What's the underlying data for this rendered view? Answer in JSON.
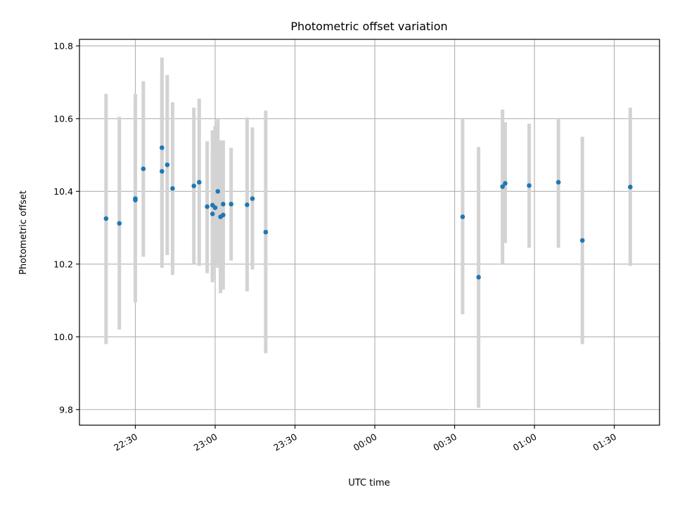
{
  "chart_data": {
    "type": "scatter",
    "title": "Photometric offset variation",
    "xlabel": "UTC time",
    "ylabel": "Photometric offset",
    "x_ticks": [
      "22:30",
      "23:00",
      "23:30",
      "00:00",
      "00:30",
      "01:00",
      "01:30"
    ],
    "y_ticks": [
      "9.8",
      "10.0",
      "10.2",
      "10.4",
      "10.6",
      "10.8"
    ],
    "x_range": [
      "22:09",
      "01:47"
    ],
    "ylim": [
      9.757,
      10.818
    ],
    "grid": true,
    "colors": {
      "point": "#1f77b4",
      "errorbar": "#d3d3d3",
      "grid": "#b0b0b0"
    },
    "points": [
      {
        "x": "22:19",
        "y": 10.325,
        "err_low": 9.98,
        "err_high": 10.668
      },
      {
        "x": "22:24",
        "y": 10.312,
        "err_low": 10.02,
        "err_high": 10.605
      },
      {
        "x": "22:30",
        "y": 10.38,
        "err_low": 10.095,
        "err_high": 10.668
      },
      {
        "x": "22:30",
        "y": 10.376,
        "err_low": 10.1,
        "err_high": 10.635
      },
      {
        "x": "22:33",
        "y": 10.462,
        "err_low": 10.22,
        "err_high": 10.703
      },
      {
        "x": "22:40",
        "y": 10.455,
        "err_low": 10.19,
        "err_high": 10.72
      },
      {
        "x": "22:40",
        "y": 10.52,
        "err_low": 10.27,
        "err_high": 10.768
      },
      {
        "x": "22:42",
        "y": 10.473,
        "err_low": 10.225,
        "err_high": 10.72
      },
      {
        "x": "22:44",
        "y": 10.408,
        "err_low": 10.17,
        "err_high": 10.645
      },
      {
        "x": "22:52",
        "y": 10.415,
        "err_low": 10.2,
        "err_high": 10.63
      },
      {
        "x": "22:54",
        "y": 10.425,
        "err_low": 10.195,
        "err_high": 10.655
      },
      {
        "x": "22:57",
        "y": 10.358,
        "err_low": 10.175,
        "err_high": 10.538
      },
      {
        "x": "22:59",
        "y": 10.338,
        "err_low": 10.15,
        "err_high": 10.52
      },
      {
        "x": "22:59",
        "y": 10.362,
        "err_low": 10.16,
        "err_high": 10.568
      },
      {
        "x": "23:00",
        "y": 10.355,
        "err_low": 10.2,
        "err_high": 10.58
      },
      {
        "x": "23:01",
        "y": 10.4,
        "err_low": 10.19,
        "err_high": 10.6
      },
      {
        "x": "23:02",
        "y": 10.33,
        "err_low": 10.12,
        "err_high": 10.54
      },
      {
        "x": "23:03",
        "y": 10.335,
        "err_low": 10.13,
        "err_high": 10.54
      },
      {
        "x": "23:03",
        "y": 10.365,
        "err_low": 10.19,
        "err_high": 10.54
      },
      {
        "x": "23:06",
        "y": 10.365,
        "err_low": 10.21,
        "err_high": 10.52
      },
      {
        "x": "23:12",
        "y": 10.363,
        "err_low": 10.125,
        "err_high": 10.603
      },
      {
        "x": "23:14",
        "y": 10.38,
        "err_low": 10.185,
        "err_high": 10.576
      },
      {
        "x": "23:19",
        "y": 10.288,
        "err_low": 9.955,
        "err_high": 10.622
      },
      {
        "x": "00:33",
        "y": 10.33,
        "err_low": 10.062,
        "err_high": 10.6
      },
      {
        "x": "00:39",
        "y": 10.164,
        "err_low": 9.805,
        "err_high": 10.522
      },
      {
        "x": "00:48",
        "y": 10.413,
        "err_low": 10.2,
        "err_high": 10.625
      },
      {
        "x": "00:49",
        "y": 10.422,
        "err_low": 10.258,
        "err_high": 10.59
      },
      {
        "x": "00:58",
        "y": 10.416,
        "err_low": 10.245,
        "err_high": 10.586
      },
      {
        "x": "01:09",
        "y": 10.425,
        "err_low": 10.245,
        "err_high": 10.6
      },
      {
        "x": "01:18",
        "y": 10.265,
        "err_low": 9.98,
        "err_high": 10.55
      },
      {
        "x": "01:36",
        "y": 10.412,
        "err_low": 10.195,
        "err_high": 10.63
      }
    ]
  }
}
